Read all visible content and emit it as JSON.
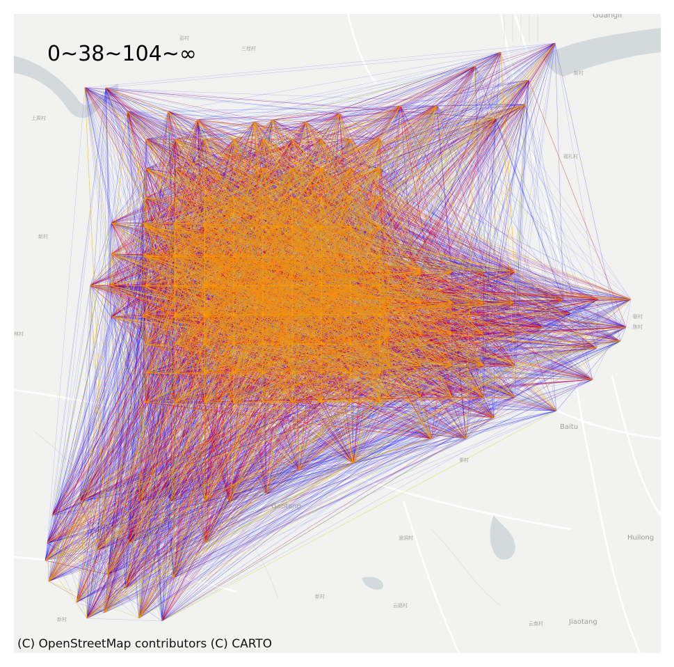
{
  "legend": {
    "title": "0~38~104~∞",
    "thresholds": [
      0,
      38,
      104
    ],
    "colors": {
      "low": "#0000ff",
      "mid": "#ff0000",
      "high": "#ffff00"
    }
  },
  "attribution": "(C) OpenStreetMap contributors (C) CARTO",
  "basemap": {
    "background": "#f2f3f0",
    "water": "#d4dadc",
    "road": "#ffffff",
    "labels": [
      {
        "text": "Guangli",
        "kind": "town"
      },
      {
        "text": "彭村",
        "kind": "village"
      },
      {
        "text": "三桂村",
        "kind": "village"
      },
      {
        "text": "新村",
        "kind": "village"
      },
      {
        "text": "上周村",
        "kind": "village"
      },
      {
        "text": "福礼村",
        "kind": "village"
      },
      {
        "text": "新村",
        "kind": "village"
      },
      {
        "text": "联村",
        "kind": "village"
      },
      {
        "text": "陈村",
        "kind": "village"
      },
      {
        "text": "Baitu",
        "kind": "town"
      },
      {
        "text": "秦村",
        "kind": "village"
      },
      {
        "text": "Huilong",
        "kind": "town"
      },
      {
        "text": "波洞村",
        "kind": "village"
      },
      {
        "text": "新村",
        "kind": "village"
      },
      {
        "text": "云路村",
        "kind": "village"
      },
      {
        "text": "新村",
        "kind": "village"
      },
      {
        "text": "云南村",
        "kind": "village"
      },
      {
        "text": "Jiaotang",
        "kind": "town"
      },
      {
        "text": "Gaotang",
        "kind": "village"
      },
      {
        "text": "林村",
        "kind": "village"
      }
    ]
  }
}
